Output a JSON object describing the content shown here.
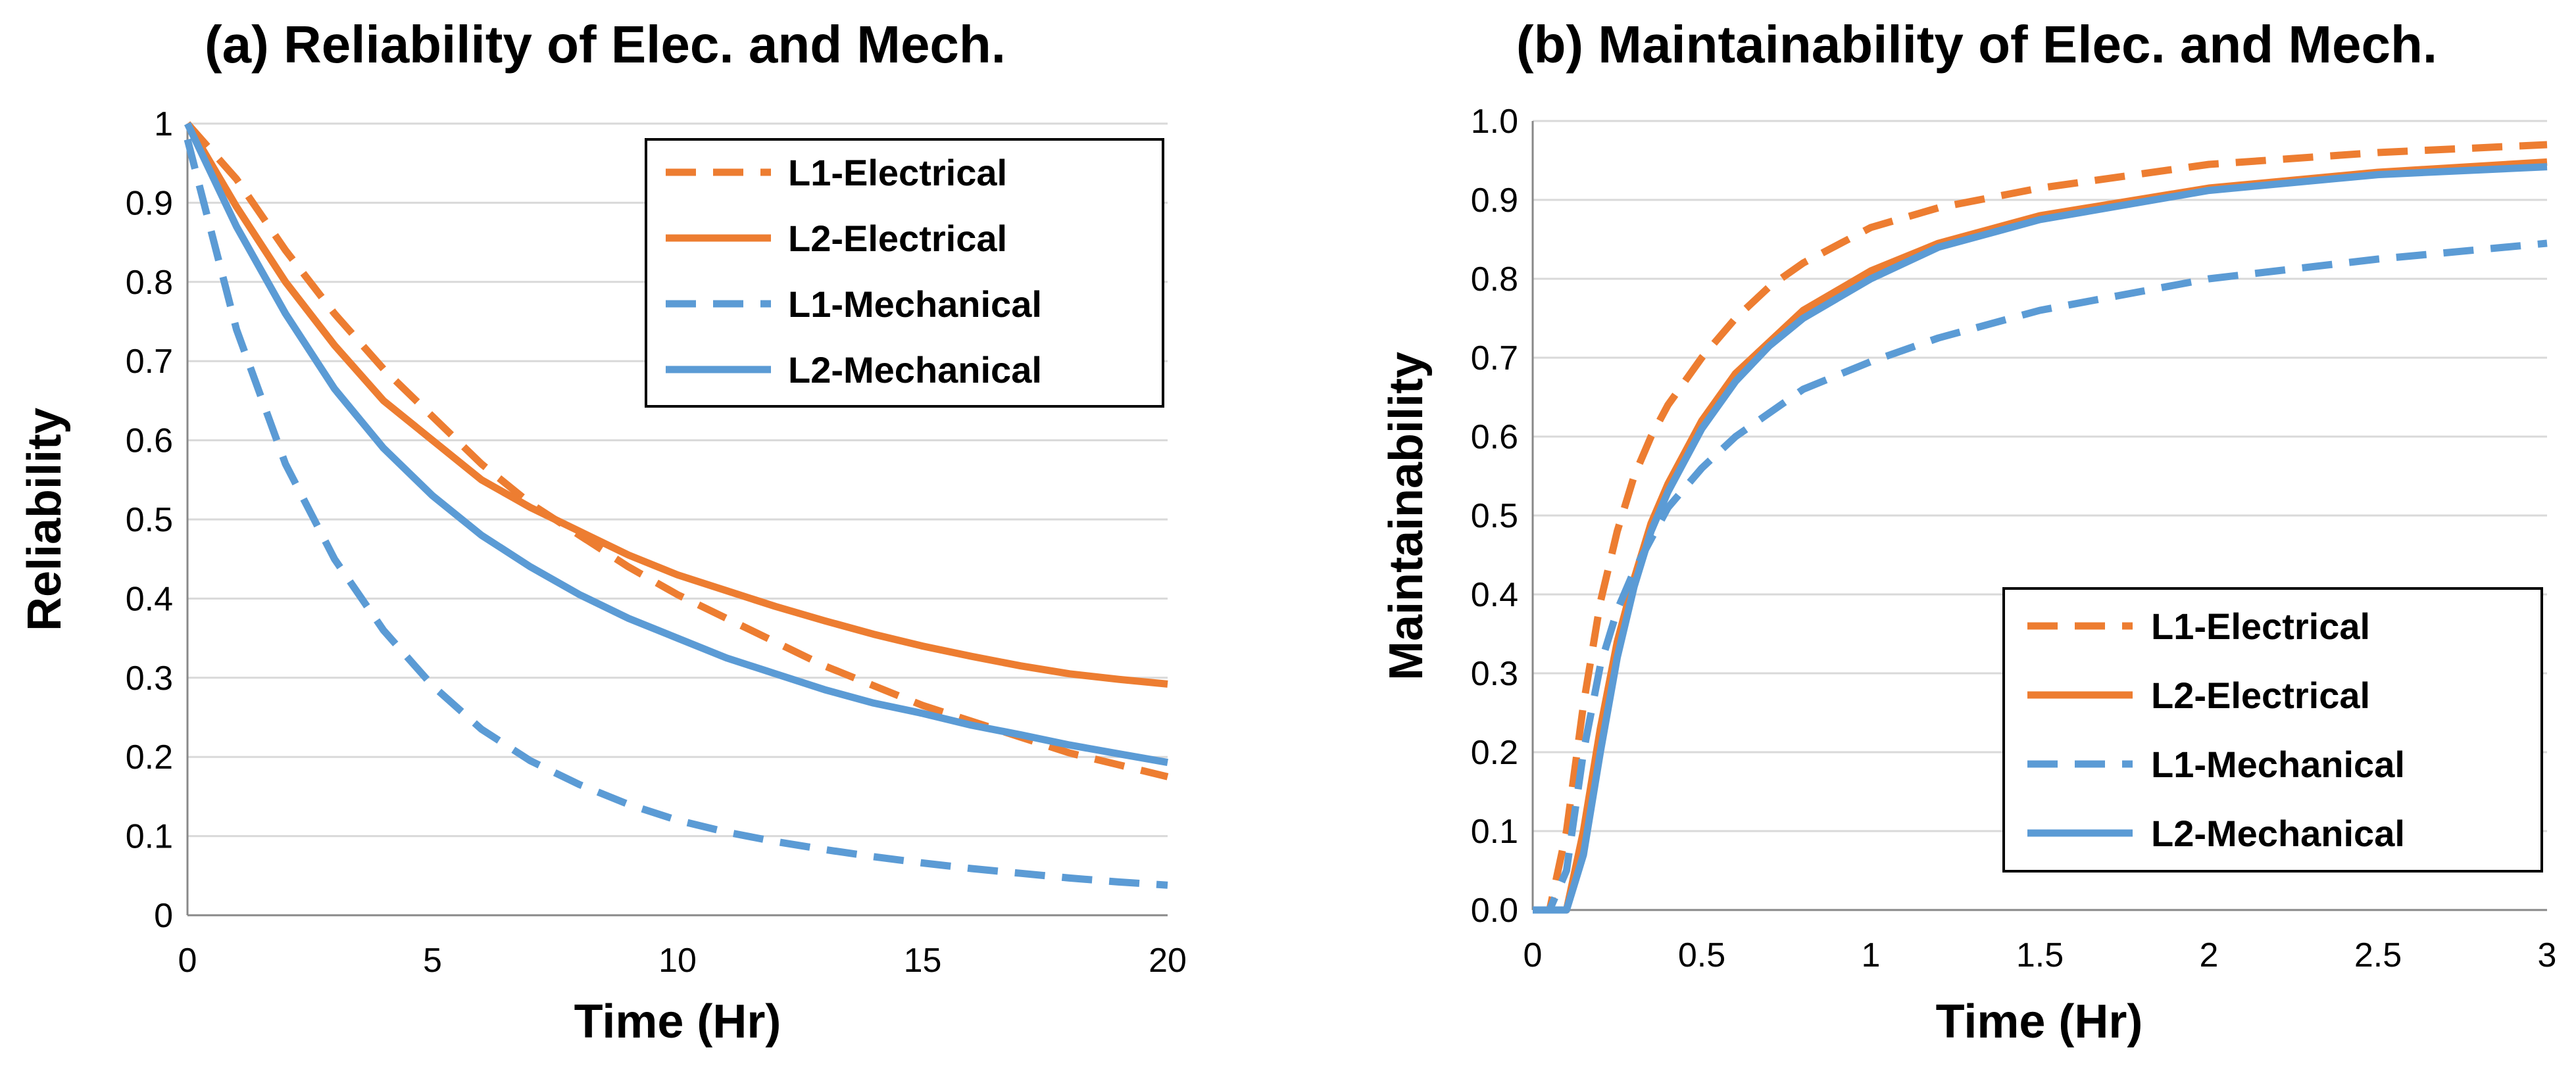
{
  "chart_data": [
    {
      "type": "line",
      "title": "(a) Reliability of  Elec. and Mech.",
      "xlabel": "Time (Hr)",
      "ylabel": "Reliability",
      "xlim": [
        0,
        20
      ],
      "ylim": [
        0,
        1
      ],
      "xticks": [
        "0",
        "5",
        "10",
        "15",
        "20"
      ],
      "yticks": [
        "0",
        "0.1",
        "0.2",
        "0.3",
        "0.4",
        "0.5",
        "0.6",
        "0.7",
        "0.8",
        "0.9",
        "1"
      ],
      "grid": true,
      "legend_position": "top-right",
      "x": [
        0,
        1,
        2,
        3,
        4,
        5,
        6,
        7,
        8,
        9,
        10,
        11,
        12,
        13,
        14,
        15,
        16,
        17,
        18,
        19,
        20
      ],
      "series": [
        {
          "name": "L1-Electrical",
          "style": "dashed",
          "color": "#ED7D31",
          "values": [
            1.0,
            0.93,
            0.84,
            0.76,
            0.69,
            0.63,
            0.57,
            0.52,
            0.48,
            0.44,
            0.405,
            0.375,
            0.345,
            0.315,
            0.29,
            0.265,
            0.245,
            0.225,
            0.205,
            0.19,
            0.175
          ]
        },
        {
          "name": "L2-Electrical",
          "style": "solid",
          "color": "#ED7D31",
          "values": [
            1.0,
            0.895,
            0.8,
            0.72,
            0.65,
            0.6,
            0.55,
            0.515,
            0.485,
            0.455,
            0.43,
            0.41,
            0.39,
            0.372,
            0.355,
            0.34,
            0.327,
            0.315,
            0.305,
            0.298,
            0.292
          ]
        },
        {
          "name": "L1-Mechanical",
          "style": "dashed",
          "color": "#5B9BD5",
          "values": [
            0.98,
            0.74,
            0.57,
            0.45,
            0.36,
            0.29,
            0.235,
            0.195,
            0.165,
            0.14,
            0.12,
            0.105,
            0.093,
            0.083,
            0.074,
            0.066,
            0.059,
            0.053,
            0.047,
            0.042,
            0.038
          ]
        },
        {
          "name": "L2-Mechanical",
          "style": "solid",
          "color": "#5B9BD5",
          "values": [
            1.0,
            0.87,
            0.76,
            0.665,
            0.59,
            0.53,
            0.48,
            0.44,
            0.405,
            0.375,
            0.35,
            0.325,
            0.305,
            0.285,
            0.268,
            0.255,
            0.24,
            0.228,
            0.215,
            0.204,
            0.193
          ]
        }
      ]
    },
    {
      "type": "line",
      "title": "(b) Maintainability of  Elec. and Mech.",
      "xlabel": "Time (Hr)",
      "ylabel": "Maintainability",
      "xlim": [
        0,
        3
      ],
      "ylim": [
        0,
        1
      ],
      "xticks": [
        "0",
        "0.5",
        "1",
        "1.5",
        "2",
        "2.5",
        "3"
      ],
      "yticks": [
        "0.0",
        "0.1",
        "0.2",
        "0.3",
        "0.4",
        "0.5",
        "0.6",
        "0.7",
        "0.8",
        "0.9",
        "1.0"
      ],
      "grid": true,
      "legend_position": "bottom-right",
      "x": [
        0,
        0.05,
        0.1,
        0.15,
        0.2,
        0.25,
        0.3,
        0.35,
        0.4,
        0.5,
        0.6,
        0.7,
        0.8,
        1.0,
        1.2,
        1.5,
        2.0,
        2.5,
        3.0
      ],
      "series": [
        {
          "name": "L1-Electrical",
          "style": "dashed",
          "color": "#ED7D31",
          "values": [
            0.0,
            0.0,
            0.1,
            0.26,
            0.39,
            0.48,
            0.55,
            0.6,
            0.64,
            0.7,
            0.75,
            0.79,
            0.82,
            0.865,
            0.89,
            0.915,
            0.945,
            0.96,
            0.97
          ]
        },
        {
          "name": "L2-Electrical",
          "style": "solid",
          "color": "#ED7D31",
          "values": [
            0.0,
            0.0,
            0.0,
            0.1,
            0.23,
            0.34,
            0.42,
            0.49,
            0.54,
            0.62,
            0.68,
            0.72,
            0.76,
            0.81,
            0.845,
            0.88,
            0.915,
            0.935,
            0.948
          ]
        },
        {
          "name": "L1-Mechanical",
          "style": "dashed",
          "color": "#5B9BD5",
          "values": [
            0.0,
            0.0,
            0.05,
            0.2,
            0.31,
            0.38,
            0.43,
            0.47,
            0.51,
            0.56,
            0.6,
            0.63,
            0.66,
            0.695,
            0.725,
            0.76,
            0.8,
            0.825,
            0.845
          ]
        },
        {
          "name": "L2-Mechanical",
          "style": "solid",
          "color": "#5B9BD5",
          "values": [
            0.0,
            0.0,
            0.0,
            0.07,
            0.2,
            0.32,
            0.41,
            0.48,
            0.53,
            0.61,
            0.67,
            0.715,
            0.75,
            0.8,
            0.84,
            0.875,
            0.912,
            0.932,
            0.942
          ]
        }
      ]
    }
  ]
}
